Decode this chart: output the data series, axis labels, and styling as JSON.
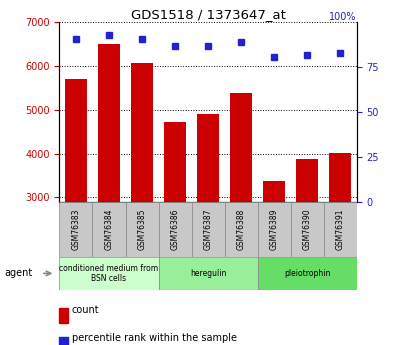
{
  "title": "GDS1518 / 1373647_at",
  "samples": [
    "GSM76383",
    "GSM76384",
    "GSM76385",
    "GSM76386",
    "GSM76387",
    "GSM76388",
    "GSM76389",
    "GSM76390",
    "GSM76391"
  ],
  "counts": [
    5700,
    6500,
    6080,
    4720,
    4900,
    5380,
    3380,
    3870,
    4020
  ],
  "percentiles": [
    91,
    93,
    91,
    87,
    87,
    89,
    81,
    82,
    83
  ],
  "ymin": 2900,
  "ymax": 7000,
  "y2min": 0,
  "y2max": 100,
  "bar_color": "#cc0000",
  "dot_color": "#2222cc",
  "tick_bg": "#c8c8c8",
  "agent_groups": [
    {
      "label": "conditioned medium from\nBSN cells",
      "start": 0,
      "end": 3,
      "color": "#ccffcc"
    },
    {
      "label": "heregulin",
      "start": 3,
      "end": 6,
      "color": "#99ee99"
    },
    {
      "label": "pleiotrophin",
      "start": 6,
      "end": 9,
      "color": "#66dd66"
    }
  ],
  "yticks_left": [
    3000,
    4000,
    5000,
    6000,
    7000
  ],
  "yticks_right": [
    0,
    25,
    50,
    75,
    100
  ],
  "legend_count_label": "count",
  "legend_pct_label": "percentile rank within the sample"
}
